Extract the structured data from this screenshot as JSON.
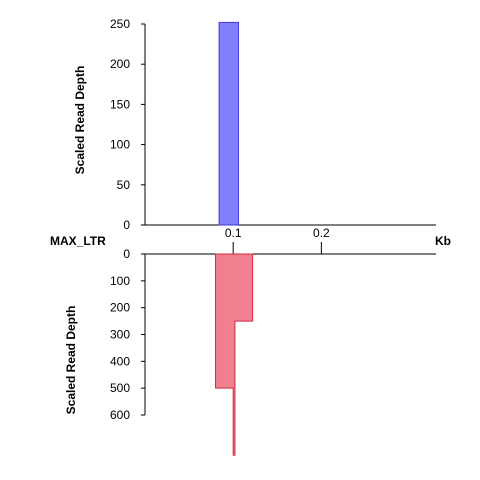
{
  "chart_data": {
    "type": "area",
    "track_label": "MAX_LTR",
    "x_unit": "Kb",
    "x_ticks": [
      {
        "value": 0.1,
        "label": "0.1"
      },
      {
        "value": 0.2,
        "label": "0.2"
      }
    ],
    "xlim": [
      0.0,
      0.33
    ],
    "top_panel": {
      "ylabel": "Scaled Read Depth",
      "ylim": [
        0,
        250
      ],
      "y_ticks": [
        0,
        50,
        100,
        150,
        200,
        250
      ],
      "color": "#8080ff",
      "stroke": "#3b3bd6",
      "steps": [
        {
          "x0": 0.084,
          "x1": 0.106,
          "y": 252
        }
      ]
    },
    "bottom_panel": {
      "ylabel": "Scaled Read Depth",
      "ylim": [
        0,
        600
      ],
      "y_ticks": [
        0,
        100,
        200,
        300,
        400,
        500,
        600
      ],
      "inverted": true,
      "color": "#f08090",
      "stroke": "#d02a40",
      "steps": [
        {
          "x0": 0.08,
          "x1": 0.1,
          "y": 500
        },
        {
          "x0": 0.1,
          "x1": 0.102,
          "y": 750
        },
        {
          "x0": 0.102,
          "x1": 0.122,
          "y": 250
        }
      ]
    }
  }
}
